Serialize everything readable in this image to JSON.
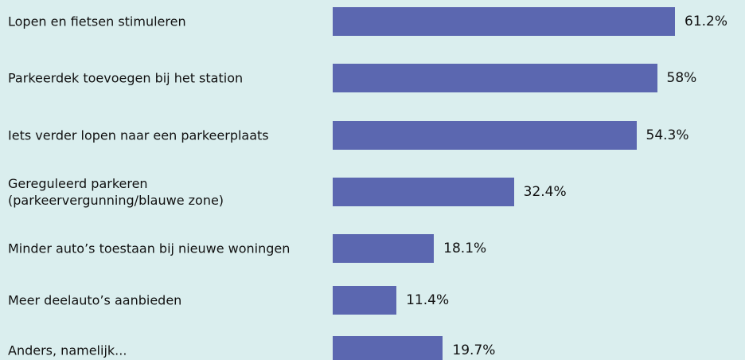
{
  "chart_data": {
    "type": "bar",
    "orientation": "horizontal",
    "color": "#5b67b0",
    "categories": [
      "Lopen en fietsen stimuleren",
      "Parkeerdek toevoegen bij het station",
      "Iets verder lopen naar een parkeerplaats",
      "Gereguleerd parkeren (parkeervergunning/blauwe zone)",
      "Minder auto’s toestaan bij nieuwe woningen",
      "Meer deelauto’s aanbieden",
      "Anders, namelijk..."
    ],
    "values": [
      61.2,
      58,
      54.3,
      32.4,
      18.1,
      11.4,
      19.7
    ],
    "value_labels": [
      "61.2%",
      "58%",
      "54.3%",
      "32.4%",
      "18.1%",
      "11.4%",
      "19.7%"
    ]
  }
}
